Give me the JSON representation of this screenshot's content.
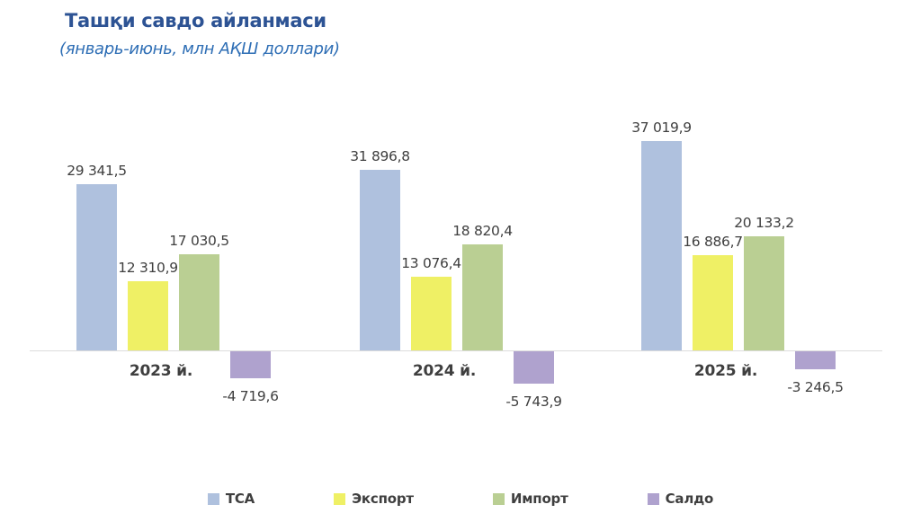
{
  "title": "Ташқи савдо айланмаси",
  "subtitle": "(январь-июнь, млн АҚШ доллари)",
  "colors": {
    "title_text": "#2d5394",
    "subtitle_text": "#2e6eb5",
    "label_text": "#3f3f3f",
    "axis_line": "#dcdcdc",
    "background": "#ffffff",
    "tca": "#afc1de",
    "eksport": "#eff065",
    "import": "#bacf93",
    "saldo": "#afa2ce"
  },
  "chart_data": {
    "type": "bar",
    "title": "Ташқи савдо айланмаси",
    "subtitle": "(январь-июнь, млн АҚШ доллари)",
    "unit": "млн АҚШ доллари",
    "period": "январь-июнь",
    "categories": [
      "2023 й.",
      "2024 й.",
      "2025 й."
    ],
    "series": [
      {
        "name": "ТСА",
        "key": "tca",
        "color": "#afc1de",
        "values": [
          29341.5,
          31896.8,
          37019.9
        ],
        "value_labels": [
          "29 341,5",
          "31 896,8",
          "37 019,9"
        ]
      },
      {
        "name": "Экспорт",
        "key": "eksport",
        "color": "#eff065",
        "values": [
          12310.9,
          13076.4,
          16886.7
        ],
        "value_labels": [
          "12 310,9",
          "13 076,4",
          "16 886,7"
        ]
      },
      {
        "name": "Импорт",
        "key": "import",
        "color": "#bacf93",
        "values": [
          17030.5,
          18820.4,
          20133.2
        ],
        "value_labels": [
          "17 030,5",
          "18 820,4",
          "20 133,2"
        ]
      },
      {
        "name": "Салдо",
        "key": "saldo",
        "color": "#afa2ce",
        "values": [
          -4719.6,
          -5743.9,
          -3246.5
        ],
        "value_labels": [
          "-4 719,6",
          "-5 743,9",
          "-3 246,5"
        ]
      }
    ],
    "ylim": [
      -5743.9,
      37019.9
    ],
    "grid": false,
    "legend_position": "bottom",
    "value_labels_shown": true,
    "baseline": 0
  }
}
